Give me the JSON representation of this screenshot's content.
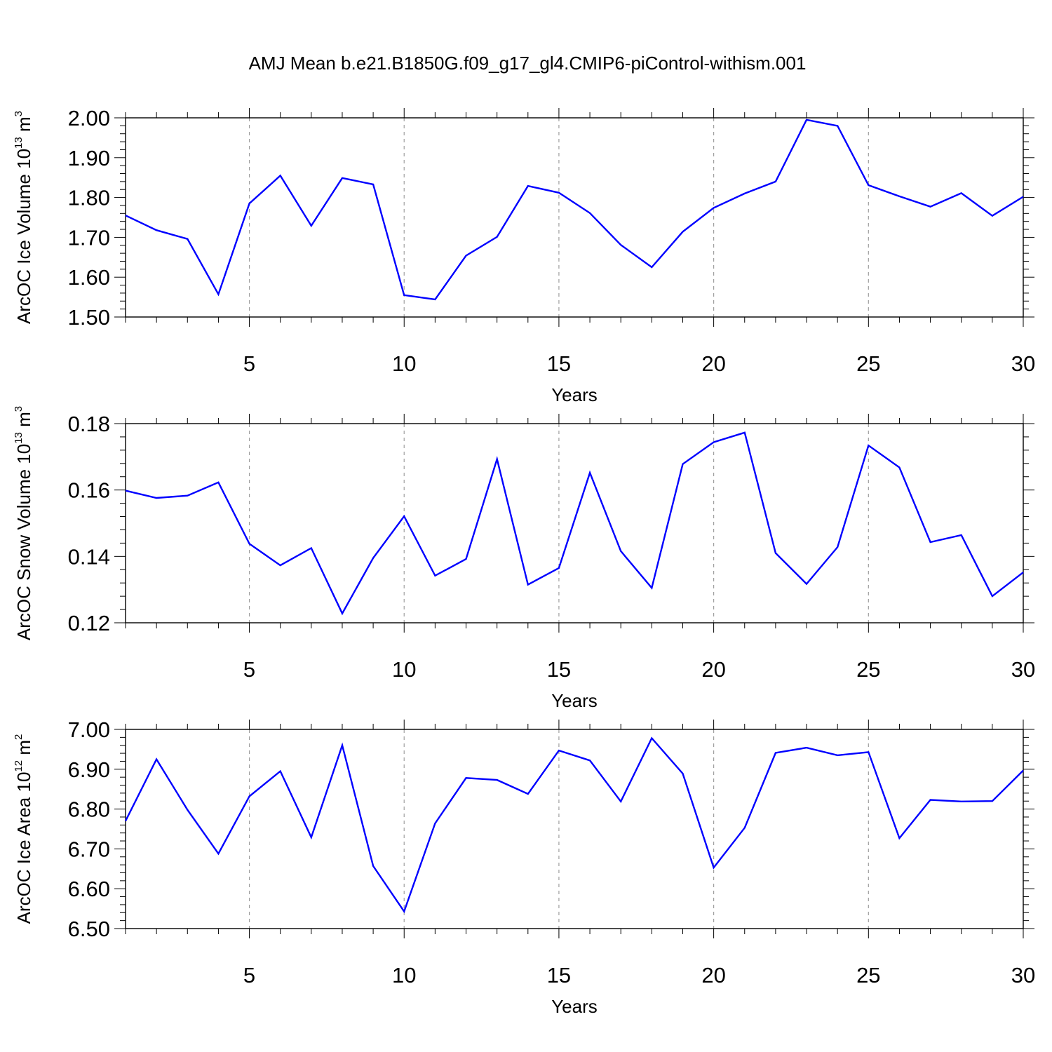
{
  "title": "AMJ Mean b.e21.B1850G.f09_g17_gl4.CMIP6-piControl-withism.001",
  "colors": {
    "series": "#0000ff",
    "axis": "#000000",
    "grid": "#9e9e9e"
  },
  "chart_data": [
    {
      "type": "line",
      "xlabel": "Years",
      "ylabel": {
        "text": "ArcOC Ice Volume 10",
        "exp": "13",
        "unit": " m",
        "unit_exp": "3"
      },
      "xlim": [
        1,
        30
      ],
      "ylim": [
        1.5,
        2.0
      ],
      "xticks": [
        5,
        10,
        15,
        20,
        25,
        30
      ],
      "yticks": [
        "1.50",
        "1.60",
        "1.70",
        "1.80",
        "1.90",
        "2.00"
      ],
      "ytick_values": [
        1.5,
        1.6,
        1.7,
        1.8,
        1.9,
        2.0
      ],
      "grid": "vertical dashed at major x ticks",
      "x": [
        1,
        2,
        3,
        4,
        5,
        6,
        7,
        8,
        9,
        10,
        11,
        12,
        13,
        14,
        15,
        16,
        17,
        18,
        19,
        20,
        21,
        22,
        23,
        24,
        25,
        26,
        27,
        28,
        29,
        30
      ],
      "y": [
        1.755,
        1.718,
        1.696,
        1.557,
        1.785,
        1.855,
        1.729,
        1.849,
        1.833,
        1.555,
        1.544,
        1.654,
        1.701,
        1.829,
        1.812,
        1.761,
        1.681,
        1.625,
        1.714,
        1.774,
        1.81,
        1.84,
        1.995,
        1.98,
        1.831,
        1.803,
        1.777,
        1.811,
        1.754,
        1.802
      ]
    },
    {
      "type": "line",
      "xlabel": "Years",
      "ylabel": {
        "text": "ArcOC Snow Volume 10",
        "exp": "13",
        "unit": " m",
        "unit_exp": "3"
      },
      "xlim": [
        1,
        30
      ],
      "ylim": [
        0.12,
        0.18
      ],
      "xticks": [
        5,
        10,
        15,
        20,
        25,
        30
      ],
      "yticks": [
        "0.12",
        "0.14",
        "0.16",
        "0.18"
      ],
      "ytick_values": [
        0.12,
        0.14,
        0.16,
        0.18
      ],
      "grid": "vertical dashed at major x ticks",
      "x": [
        1,
        2,
        3,
        4,
        5,
        6,
        7,
        8,
        9,
        10,
        11,
        12,
        13,
        14,
        15,
        16,
        17,
        18,
        19,
        20,
        21,
        22,
        23,
        24,
        25,
        26,
        27,
        28,
        29,
        30
      ],
      "y": [
        0.1598,
        0.1576,
        0.1583,
        0.1623,
        0.1438,
        0.1373,
        0.1425,
        0.1228,
        0.1395,
        0.1521,
        0.1342,
        0.1392,
        0.1693,
        0.1315,
        0.1365,
        0.1652,
        0.1416,
        0.1305,
        0.1678,
        0.1744,
        0.1773,
        0.141,
        0.1317,
        0.1428,
        0.1734,
        0.1668,
        0.1443,
        0.1464,
        0.128,
        0.1352
      ]
    },
    {
      "type": "line",
      "xlabel": "Years",
      "ylabel": {
        "text": "ArcOC Ice Area 10",
        "exp": "12",
        "unit": " m",
        "unit_exp": "2"
      },
      "xlim": [
        1,
        30
      ],
      "ylim": [
        6.5,
        7.0
      ],
      "xticks": [
        5,
        10,
        15,
        20,
        25,
        30
      ],
      "yticks": [
        "6.50",
        "6.60",
        "6.70",
        "6.80",
        "6.90",
        "7.00"
      ],
      "ytick_values": [
        6.5,
        6.6,
        6.7,
        6.8,
        6.9,
        7.0
      ],
      "grid": "vertical dashed at major x ticks",
      "x": [
        1,
        2,
        3,
        4,
        5,
        6,
        7,
        8,
        9,
        10,
        11,
        12,
        13,
        14,
        15,
        16,
        17,
        18,
        19,
        20,
        21,
        22,
        23,
        24,
        25,
        26,
        27,
        28,
        29,
        30
      ],
      "y": [
        6.77,
        6.925,
        6.798,
        6.688,
        6.832,
        6.895,
        6.729,
        6.96,
        6.657,
        6.543,
        6.764,
        6.878,
        6.873,
        6.838,
        6.947,
        6.922,
        6.819,
        6.978,
        6.889,
        6.653,
        6.753,
        6.941,
        6.954,
        6.935,
        6.943,
        6.727,
        6.823,
        6.819,
        6.82,
        6.897
      ]
    }
  ]
}
